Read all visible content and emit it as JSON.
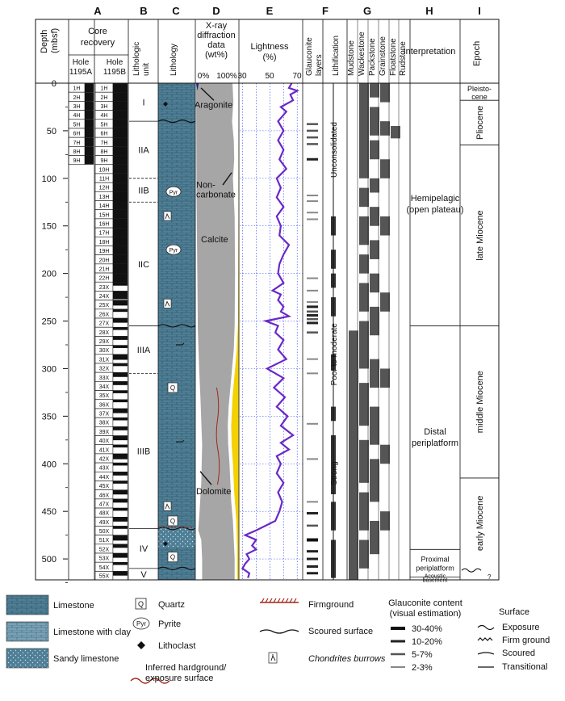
{
  "columns": {
    "letters": [
      "A",
      "B",
      "C",
      "D",
      "E",
      "F",
      "G",
      "H",
      "I"
    ],
    "depth_header_1": "Depth",
    "depth_header_2": "(mbsf)",
    "core_recovery_1": "Core",
    "core_recovery_2": "recovery",
    "hole_a_1": "Hole",
    "hole_a_2": "1195A",
    "hole_b_1": "Hole",
    "hole_b_2": "1195B",
    "lithologic_unit_1": "Lithologic",
    "lithologic_unit_2": "unit",
    "lithology": "Lithology",
    "xrd_1": "X-ray",
    "xrd_2": "diffraction",
    "xrd_3": "data",
    "xrd_4": "(wt%)",
    "xrd_tick_0": "0%",
    "xrd_tick_100": "100%",
    "lightness_1": "Lightness",
    "lightness_2": "(%)",
    "lightness_ticks": [
      "30",
      "50",
      "70"
    ],
    "glauconite_1": "Glauconite",
    "glauconite_2": "layers",
    "lithification": "Lithification",
    "textures": [
      "Mudstone",
      "Wackestone",
      "Packstone",
      "Grainstone",
      "Floatstone",
      "Rudstone"
    ],
    "interpretation": "Interpretation",
    "epoch": "Epoch"
  },
  "depth_ticks": [
    "0",
    "50",
    "100",
    "150",
    "200",
    "250",
    "300",
    "350",
    "400",
    "450",
    "500"
  ],
  "cores_1195A": [
    "1H",
    "2H",
    "3H",
    "4H",
    "5H",
    "6H",
    "7H",
    "8H",
    "9H"
  ],
  "cores_1195B": [
    "1H",
    "2H",
    "3H",
    "4H",
    "5H",
    "6H",
    "7H",
    "8H",
    "9H",
    "10H",
    "11H",
    "12H",
    "13H",
    "14H",
    "15H",
    "16H",
    "17H",
    "18H",
    "19H",
    "20H",
    "21H",
    "22H",
    "23X",
    "24X",
    "25X",
    "26X",
    "27X",
    "28X",
    "29X",
    "30X",
    "31X",
    "32X",
    "33X",
    "34X",
    "35X",
    "36X",
    "37X",
    "38X",
    "39X",
    "40X",
    "41X",
    "42X",
    "43X",
    "44X",
    "45X",
    "46X",
    "47X",
    "48X",
    "49X",
    "50X",
    "51X",
    "52X",
    "53X",
    "54X",
    "55X"
  ],
  "units": [
    {
      "label": "I",
      "top": 0,
      "bottom": 40
    },
    {
      "label": "IIA",
      "top": 40,
      "bottom": 100
    },
    {
      "label": "IIB",
      "top": 100,
      "bottom": 125
    },
    {
      "label": "IIC",
      "top": 125,
      "bottom": 255
    },
    {
      "label": "IIIA",
      "top": 255,
      "bottom": 305
    },
    {
      "label": "IIIB",
      "top": 305,
      "bottom": 468
    },
    {
      "label": "IV",
      "top": 468,
      "bottom": 510
    },
    {
      "label": "V",
      "top": 510,
      "bottom": 522
    }
  ],
  "xrd_labels": {
    "aragonite": "Aragonite",
    "noncarb_1": "Non-",
    "noncarb_2": "carbonate",
    "calcite": "Calcite",
    "dolomite": "Dolomite"
  },
  "lithology_symbols": {
    "pyrite": "Pyr",
    "quartz": "Q"
  },
  "lithification_labels": {
    "unconsolidated": "Unconsolidated",
    "poor_moderate": "Poor to moderate",
    "strong": "Strong"
  },
  "interpretations": [
    {
      "text_1": "Hemipelagic",
      "text_2": "(open plateau)",
      "top": 0,
      "bottom": 255
    },
    {
      "text_1": "Distal",
      "text_2": "periplatform",
      "top": 255,
      "bottom": 490
    },
    {
      "text_1": "Proximal",
      "text_2": "periplatform",
      "top": 490,
      "bottom": 519
    },
    {
      "text_1": "Acoustic",
      "text_2": "basement",
      "top": 519,
      "bottom": 522
    }
  ],
  "epochs": [
    {
      "text_1": "Pleisto-",
      "text_2": "cene",
      "top": 0,
      "bottom": 18
    },
    {
      "text_1": "Pliocene",
      "text_2": "",
      "top": 18,
      "bottom": 65
    },
    {
      "text_1": "late Miocene",
      "text_2": "",
      "top": 65,
      "bottom": 255
    },
    {
      "text_1": "middle Miocene",
      "text_2": "",
      "top": 255,
      "bottom": 415
    },
    {
      "text_1": "early Miocene",
      "text_2": "",
      "top": 415,
      "bottom": 510
    }
  ],
  "legend": {
    "limestone": "Limestone",
    "limestone_clay": "Limestone with clay",
    "sandy_limestone": "Sandy limestone",
    "quartz": "Quartz",
    "pyrite": "Pyrite",
    "lithoclast": "Lithoclast",
    "hardground_1": "Inferred hardground/",
    "hardground_2": "exposure surface",
    "firmground": "Firmground",
    "scoured": "Scoured surface",
    "chondrites": "Chondrites burrows",
    "glauc_title_1": "Glauconite content",
    "glauc_title_2": "(visual estimation)",
    "glauc_levels": [
      "30-40%",
      "10-20%",
      "5-7%",
      "2-3%"
    ],
    "surface_title": "Surface",
    "surface_types": [
      "Exposure",
      "Firm ground",
      "Scoured",
      "Transitional"
    ]
  },
  "colors": {
    "limestone": "#4f7f96",
    "limestone_clay": "#7aa2b6",
    "calcite_gray": "#a6a6a6",
    "dolomite_yellow": "#f4d100",
    "aragonite_blue": "#1a237e",
    "lightness_purple": "#6a28c8",
    "grid_blue": "#2b3cff",
    "firmground_red": "#a0281a"
  }
}
